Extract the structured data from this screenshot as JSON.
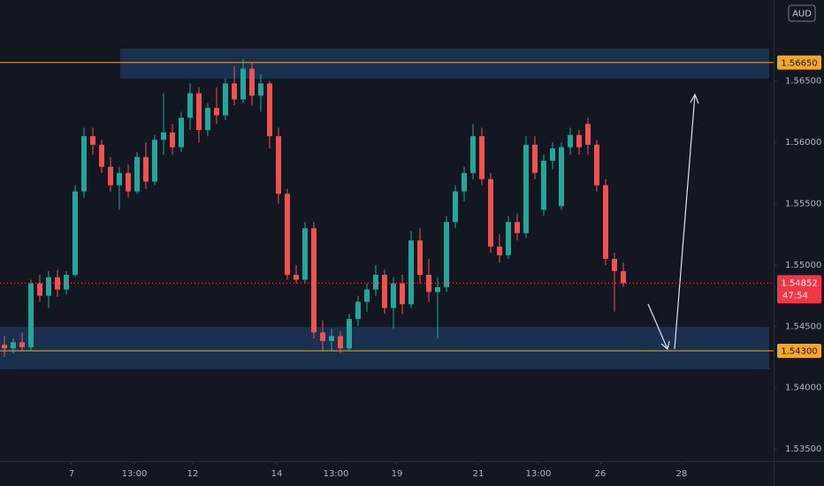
{
  "chart_data": {
    "type": "candlestick",
    "currency": "AUD",
    "up_color": "#26a69a",
    "down_color": "#ef5350",
    "level_color": "#f5a623",
    "open": [
      1.5435,
      1.5432,
      1.5437,
      1.5433,
      1.5485,
      1.5475,
      1.549,
      1.548,
      1.5492,
      1.556,
      1.5605,
      1.5598,
      1.558,
      1.5565,
      1.5575,
      1.556,
      1.5588,
      1.5568,
      1.5602,
      1.5608,
      1.5596,
      1.562,
      1.564,
      1.561,
      1.5628,
      1.5622,
      1.5648,
      1.5635,
      1.566,
      1.5638,
      1.5648,
      1.5605,
      1.5558,
      1.5492,
      1.5488,
      1.553,
      1.5445,
      1.5438,
      1.5442,
      1.5432,
      1.5456,
      1.547,
      1.548,
      1.5492,
      1.5465,
      1.5485,
      1.5468,
      1.552,
      1.5492,
      1.5478,
      1.5482,
      1.5535,
      1.556,
      1.5575,
      1.5605,
      1.557,
      1.5515,
      1.5508,
      1.5535,
      1.5526,
      1.5598,
      1.5545,
      1.5585,
      1.5548,
      1.5596,
      1.5606,
      1.5615,
      1.5598,
      1.5565,
      1.5505,
      1.5495
    ],
    "high": [
      1.5442,
      1.544,
      1.5445,
      1.5488,
      1.5492,
      1.5495,
      1.5496,
      1.5495,
      1.5565,
      1.5612,
      1.5612,
      1.5602,
      1.5588,
      1.558,
      1.5582,
      1.5592,
      1.56,
      1.5606,
      1.564,
      1.5615,
      1.5625,
      1.5648,
      1.5645,
      1.5632,
      1.5645,
      1.5652,
      1.5662,
      1.5668,
      1.5665,
      1.5655,
      1.565,
      1.5612,
      1.5562,
      1.55,
      1.5535,
      1.5535,
      1.5455,
      1.5448,
      1.5446,
      1.546,
      1.5475,
      1.5485,
      1.55,
      1.5496,
      1.549,
      1.5492,
      1.5528,
      1.553,
      1.5505,
      1.549,
      1.554,
      1.5565,
      1.558,
      1.5615,
      1.5612,
      1.5575,
      1.5525,
      1.554,
      1.5542,
      1.5605,
      1.5605,
      1.559,
      1.56,
      1.56,
      1.5612,
      1.561,
      1.562,
      1.5602,
      1.557,
      1.551,
      1.5502
    ],
    "low": [
      1.5425,
      1.5428,
      1.543,
      1.543,
      1.547,
      1.5465,
      1.5474,
      1.5476,
      1.549,
      1.5555,
      1.559,
      1.5575,
      1.556,
      1.5545,
      1.5555,
      1.5558,
      1.5562,
      1.5565,
      1.559,
      1.559,
      1.5592,
      1.561,
      1.56,
      1.5605,
      1.5615,
      1.5618,
      1.563,
      1.5632,
      1.563,
      1.5625,
      1.5595,
      1.555,
      1.5488,
      1.5485,
      1.5485,
      1.544,
      1.543,
      1.543,
      1.5428,
      1.543,
      1.545,
      1.5462,
      1.5475,
      1.546,
      1.5448,
      1.546,
      1.5465,
      1.5485,
      1.547,
      1.544,
      1.5478,
      1.553,
      1.5552,
      1.557,
      1.5565,
      1.551,
      1.5502,
      1.5505,
      1.552,
      1.5522,
      1.557,
      1.554,
      1.5578,
      1.5545,
      1.559,
      1.559,
      1.559,
      1.556,
      1.55,
      1.5462,
      1.5482
    ],
    "close": [
      1.5432,
      1.5437,
      1.5433,
      1.5485,
      1.5475,
      1.549,
      1.548,
      1.5492,
      1.556,
      1.5605,
      1.5598,
      1.558,
      1.5565,
      1.5575,
      1.556,
      1.5588,
      1.5568,
      1.5602,
      1.5608,
      1.5596,
      1.562,
      1.564,
      1.561,
      1.5628,
      1.5622,
      1.5648,
      1.5635,
      1.566,
      1.5638,
      1.5648,
      1.5605,
      1.5558,
      1.5492,
      1.5488,
      1.553,
      1.5445,
      1.5438,
      1.5442,
      1.5432,
      1.5456,
      1.547,
      1.548,
      1.5492,
      1.5465,
      1.5485,
      1.5468,
      1.552,
      1.5492,
      1.5478,
      1.5482,
      1.5535,
      1.556,
      1.5575,
      1.5605,
      1.557,
      1.5515,
      1.5508,
      1.5535,
      1.5526,
      1.5598,
      1.5575,
      1.5585,
      1.5595,
      1.5596,
      1.5606,
      1.5596,
      1.5598,
      1.5565,
      1.5505,
      1.5495,
      1.54852
    ],
    "xlim": [
      -0.5,
      87
    ],
    "xticks": [
      {
        "value": 7.6,
        "label": "7"
      },
      {
        "value": 14.7,
        "label": "13:00"
      },
      {
        "value": 21.3,
        "label": "12"
      },
      {
        "value": 30.8,
        "label": "14"
      },
      {
        "value": 37.5,
        "label": "13:00"
      },
      {
        "value": 44.4,
        "label": "19"
      },
      {
        "value": 53.6,
        "label": "21"
      },
      {
        "value": 60.4,
        "label": "13:00"
      },
      {
        "value": 67.4,
        "label": "26"
      },
      {
        "value": 76.6,
        "label": "28"
      }
    ],
    "ylim": [
      1.534,
      1.5716
    ],
    "yticks": [
      {
        "value": 1.535,
        "label": "1.53500"
      },
      {
        "value": 1.54,
        "label": "1.54000"
      },
      {
        "value": 1.545,
        "label": "1.54500"
      },
      {
        "value": 1.55,
        "label": "1.55000"
      },
      {
        "value": 1.555,
        "label": "1.55500"
      },
      {
        "value": 1.56,
        "label": "1.56000"
      },
      {
        "value": 1.565,
        "label": "1.56500"
      }
    ],
    "levels": [
      {
        "value": 1.5665,
        "label": "1.56650"
      },
      {
        "value": 1.543,
        "label": "1.54300"
      }
    ],
    "last_price": {
      "value": 1.54852,
      "label": "1.54852"
    },
    "countdown": "47:54"
  }
}
